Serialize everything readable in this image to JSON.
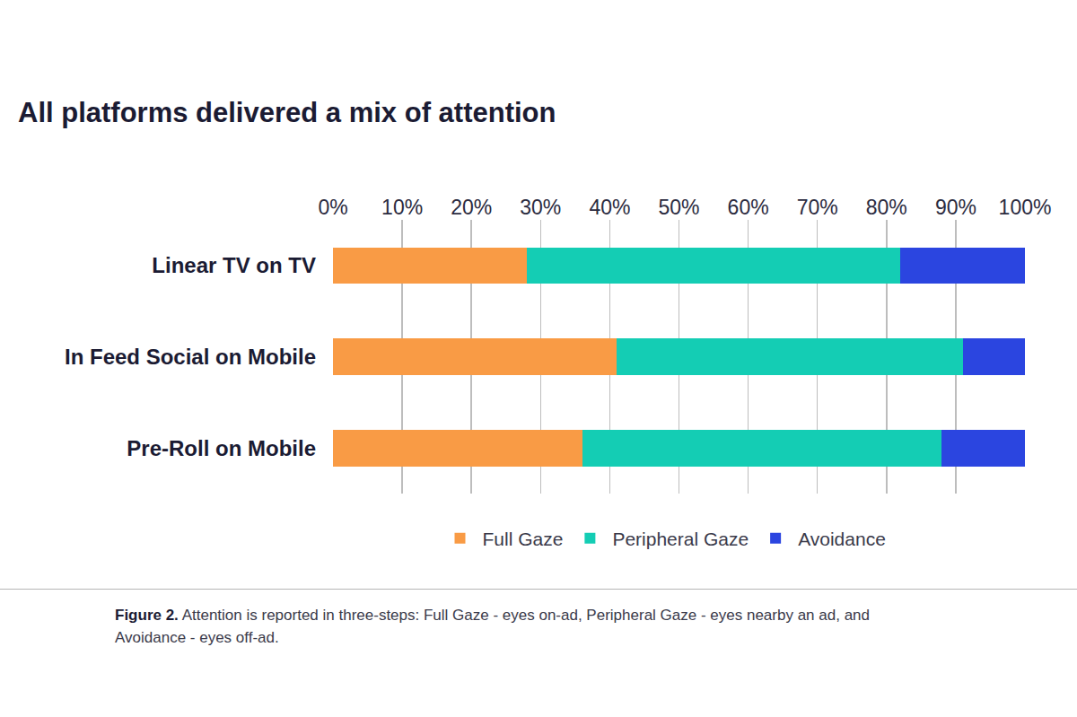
{
  "chart_data": {
    "type": "bar",
    "orientation": "horizontal",
    "stacked": true,
    "title": "All platforms delivered a mix of attention",
    "categories": [
      "Linear TV on TV",
      "In Feed Social on Mobile",
      "Pre-Roll on Mobile"
    ],
    "series": [
      {
        "name": "Full Gaze",
        "color": "#f99b45",
        "values": [
          28,
          41,
          36
        ]
      },
      {
        "name": "Peripheral Gaze",
        "color": "#14cdb4",
        "values": [
          54,
          50,
          52
        ]
      },
      {
        "name": "Avoidance",
        "color": "#2b45e0",
        "values": [
          18,
          9,
          12
        ]
      }
    ],
    "xlim": [
      0,
      100
    ],
    "xticks": [
      {
        "value": 0,
        "label": "0%"
      },
      {
        "value": 10,
        "label": "10%"
      },
      {
        "value": 20,
        "label": "20%"
      },
      {
        "value": 30,
        "label": "30%"
      },
      {
        "value": 40,
        "label": "40%"
      },
      {
        "value": 50,
        "label": "50%"
      },
      {
        "value": 60,
        "label": "60%"
      },
      {
        "value": 70,
        "label": "70%"
      },
      {
        "value": 80,
        "label": "80%"
      },
      {
        "value": 90,
        "label": "90%"
      },
      {
        "value": 100,
        "label": "100%"
      }
    ],
    "grid": true,
    "legend": "bottom",
    "annotations": [
      "Figure 2. Attention is reported in three-steps: Full Gaze - eyes on-ad, Peripheral Gaze - eyes nearby an ad, and Avoidance - eyes off-ad."
    ]
  }
}
